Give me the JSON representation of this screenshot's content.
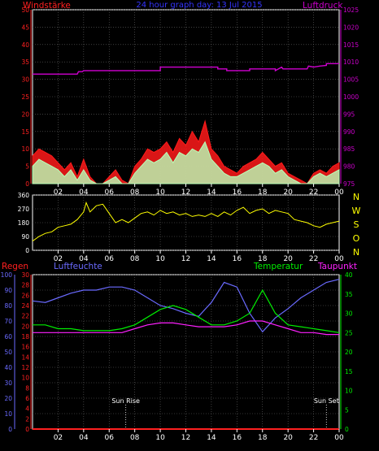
{
  "title": "24 hour graph day: 13 Jul 2015",
  "colors": {
    "background": "#000000",
    "frame": "#ffffff",
    "grid": "#666666",
    "wind_axis": "#ff2020",
    "pressure_axis": "#cc00cc",
    "pressure_line": "#d000d0",
    "wind_gust": "#ff1a1a",
    "wind_avg": "#b8ffb8",
    "direction_line": "#ffff00",
    "direction_labels": "#ffff00",
    "rain_axis": "#ff2020",
    "humidity": "#6a6aff",
    "temperature": "#00ee00",
    "dewpoint": "#ff20ff",
    "sun_marker": "#ffffff"
  },
  "chart_data": [
    {
      "id": "wind_pressure",
      "type": "line",
      "title": "24 hour graph day: 13 Jul 2015",
      "left_axis": {
        "label": "Windstärke",
        "ticks": [
          "0",
          "5",
          "10",
          "15",
          "20",
          "25",
          "30",
          "35",
          "40",
          "45",
          "50"
        ],
        "range": [
          0,
          50
        ]
      },
      "right_axis": {
        "label": "Luftdruck",
        "ticks": [
          "975",
          "980",
          "985",
          "990",
          "995",
          "1000",
          "1005",
          "1010",
          "1015",
          "1020",
          "1025"
        ],
        "range": [
          975,
          1025
        ]
      },
      "x_ticks": [
        "02",
        "04",
        "06",
        "08",
        "10",
        "12",
        "14",
        "16",
        "18",
        "20",
        "22",
        "00"
      ],
      "x_range": [
        0,
        24
      ],
      "series": [
        {
          "name": "Windstärke gust",
          "axis": "left",
          "x": [
            0,
            0.5,
            1,
            1.5,
            2,
            2.5,
            3,
            3.5,
            4,
            4.5,
            5,
            5.5,
            6,
            6.5,
            7,
            7.5,
            8,
            8.5,
            9,
            9.5,
            10,
            10.5,
            11,
            11.5,
            12,
            12.5,
            13,
            13.5,
            14,
            14.5,
            15,
            15.5,
            16,
            16.5,
            17,
            17.5,
            18,
            18.5,
            19,
            19.5,
            20,
            20.5,
            21,
            21.5,
            22,
            22.5,
            23,
            23.5,
            24
          ],
          "y": [
            8,
            10,
            9,
            8,
            6,
            4,
            6,
            2,
            7,
            2,
            0,
            0,
            2,
            4,
            1,
            0,
            5,
            7,
            10,
            9,
            10,
            12,
            9,
            13,
            11,
            15,
            12,
            18,
            10,
            8,
            5,
            4,
            3,
            5,
            6,
            7,
            9,
            7,
            5,
            6,
            3,
            2,
            1,
            0,
            3,
            4,
            3,
            5,
            6
          ]
        },
        {
          "name": "Windstärke avg",
          "axis": "left",
          "x": [
            0,
            0.5,
            1,
            1.5,
            2,
            2.5,
            3,
            3.5,
            4,
            4.5,
            5,
            5.5,
            6,
            6.5,
            7,
            7.5,
            8,
            8.5,
            9,
            9.5,
            10,
            10.5,
            11,
            11.5,
            12,
            12.5,
            13,
            13.5,
            14,
            14.5,
            15,
            15.5,
            16,
            16.5,
            17,
            17.5,
            18,
            18.5,
            19,
            19.5,
            20,
            20.5,
            21,
            21.5,
            22,
            22.5,
            23,
            23.5,
            24
          ],
          "y": [
            5,
            7,
            6,
            5,
            4,
            2,
            4,
            1,
            4,
            1,
            0,
            0,
            1,
            2,
            0,
            0,
            3,
            5,
            7,
            6,
            7,
            9,
            6,
            9,
            8,
            10,
            9,
            12,
            7,
            5,
            3,
            2,
            2,
            3,
            4,
            5,
            6,
            5,
            3,
            4,
            2,
            1,
            0,
            0,
            2,
            3,
            2,
            3,
            4
          ]
        },
        {
          "name": "Luftdruck",
          "axis": "right",
          "x": [
            0,
            3.5,
            3.6,
            3.9,
            4.0,
            6.0,
            10.0,
            10.0,
            14.5,
            14.5,
            15.2,
            15.2,
            17.0,
            17.0,
            19.0,
            19.0,
            19.5,
            19.6,
            20.0,
            21.5,
            21.6,
            22.0,
            22.5,
            23.0,
            23.0,
            24.0
          ],
          "y": [
            1006.5,
            1006.5,
            1007.2,
            1007.2,
            1007.5,
            1007.5,
            1007.5,
            1008.5,
            1008.5,
            1008.0,
            1008.0,
            1007.5,
            1007.5,
            1008.0,
            1008.0,
            1007.5,
            1008.5,
            1008.0,
            1008.0,
            1008.0,
            1008.8,
            1008.5,
            1008.8,
            1009.0,
            1009.5,
            1009.5
          ]
        }
      ]
    },
    {
      "id": "wind_direction",
      "type": "line",
      "left_axis": {
        "ticks": [
          "0",
          "90",
          "180",
          "270",
          "360"
        ],
        "range": [
          0,
          360
        ]
      },
      "right_labels": [
        "N",
        "W",
        "S",
        "O",
        "N"
      ],
      "x_ticks": [
        "02",
        "04",
        "06",
        "08",
        "10",
        "12",
        "14",
        "16",
        "18",
        "20",
        "22",
        "00"
      ],
      "x_range": [
        0,
        24
      ],
      "series": [
        {
          "name": "Windrichtung",
          "x": [
            0,
            0.5,
            1,
            1.5,
            2,
            2.5,
            3,
            3.5,
            4,
            4.2,
            4.5,
            5,
            5.5,
            6,
            6.5,
            7,
            7.5,
            8,
            8.5,
            9,
            9.5,
            10,
            10.5,
            11,
            11.5,
            12,
            12.5,
            13,
            13.5,
            14,
            14.5,
            15,
            15.5,
            16,
            16.5,
            17,
            17.5,
            18,
            18.5,
            19,
            19.5,
            20,
            20.5,
            21,
            21.5,
            22,
            22.5,
            23,
            23.5,
            24
          ],
          "y": [
            60,
            90,
            110,
            120,
            150,
            160,
            170,
            200,
            250,
            310,
            250,
            290,
            300,
            240,
            180,
            200,
            180,
            210,
            240,
            250,
            230,
            260,
            240,
            250,
            230,
            240,
            220,
            230,
            220,
            240,
            220,
            250,
            230,
            260,
            280,
            240,
            260,
            270,
            240,
            260,
            250,
            240,
            200,
            190,
            180,
            160,
            150,
            170,
            180,
            190
          ]
        }
      ]
    },
    {
      "id": "temp_humidity",
      "type": "line",
      "labels": {
        "rain": "Regen",
        "humidity": "Luftfeuchte",
        "temperature": "Temperatur",
        "dewpoint": "Taupunkt"
      },
      "humidity_axis": {
        "ticks": [
          "0",
          "10",
          "20",
          "30",
          "40",
          "50",
          "60",
          "70",
          "80",
          "90",
          "100"
        ],
        "range": [
          0,
          100
        ]
      },
      "rain_axis": {
        "ticks": [
          "0",
          "2",
          "4",
          "6",
          "8",
          "10",
          "12",
          "14",
          "16",
          "18",
          "20",
          "22",
          "24",
          "26",
          "28",
          "30"
        ],
        "range": [
          0,
          30
        ]
      },
      "temp_axis": {
        "ticks": [
          "0",
          "5",
          "10",
          "15",
          "20",
          "25",
          "30",
          "35",
          "40"
        ],
        "range": [
          0,
          40
        ]
      },
      "x_ticks": [
        "02",
        "04",
        "06",
        "08",
        "10",
        "12",
        "14",
        "16",
        "18",
        "20",
        "22",
        "00"
      ],
      "x_range": [
        0,
        24
      ],
      "annotations": [
        {
          "label": "Sun Rise",
          "x": 7.3
        },
        {
          "label": "Sun Set",
          "x": 23.0
        }
      ],
      "series": [
        {
          "name": "Luftfeuchte",
          "axis": "humidity",
          "x": [
            0,
            1,
            2,
            3,
            4,
            5,
            6,
            7,
            8,
            9,
            10,
            11,
            12,
            13,
            14,
            15,
            16,
            17,
            18,
            19,
            20,
            21,
            22,
            23,
            24
          ],
          "y": [
            83,
            82,
            85,
            88,
            90,
            90,
            92,
            92,
            90,
            85,
            80,
            78,
            75,
            73,
            82,
            95,
            92,
            75,
            63,
            72,
            78,
            85,
            90,
            95,
            97
          ]
        },
        {
          "name": "Temperatur",
          "axis": "temp",
          "x": [
            0,
            1,
            2,
            3,
            4,
            5,
            6,
            7,
            8,
            9,
            10,
            11,
            12,
            13,
            14,
            15,
            16,
            17,
            18,
            19,
            20,
            21,
            22,
            23,
            24
          ],
          "y": [
            27,
            27,
            26,
            26,
            25.5,
            25.5,
            25.5,
            26,
            27,
            29,
            31,
            32,
            31,
            29,
            27,
            27,
            28,
            30,
            36,
            30,
            27,
            26.5,
            26,
            25.5,
            25
          ]
        },
        {
          "name": "Taupunkt",
          "axis": "temp",
          "x": [
            0,
            1,
            2,
            3,
            4,
            5,
            6,
            7,
            8,
            9,
            10,
            11,
            12,
            13,
            14,
            15,
            16,
            17,
            18,
            19,
            20,
            21,
            22,
            23,
            24
          ],
          "y": [
            25,
            25,
            25,
            25,
            25,
            25,
            25,
            25,
            26,
            27,
            27.5,
            27.5,
            27,
            26.5,
            26.5,
            26.5,
            27,
            28,
            28,
            27,
            26,
            25,
            25,
            24.5,
            24.5
          ]
        },
        {
          "name": "Regen",
          "axis": "rain",
          "x": [
            0,
            24
          ],
          "y": [
            0,
            0
          ]
        }
      ]
    }
  ]
}
